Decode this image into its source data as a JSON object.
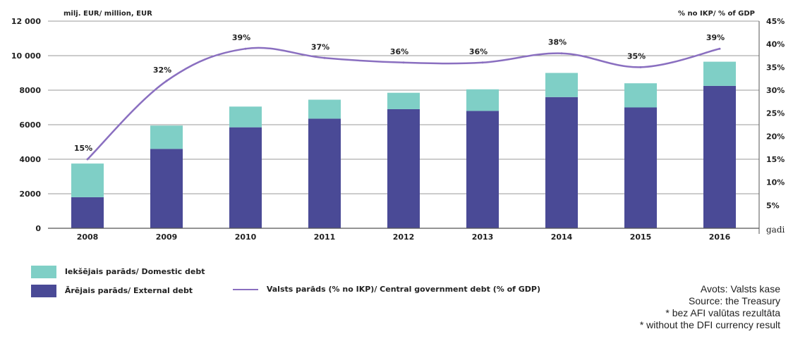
{
  "chart_data": {
    "type": "bar",
    "stacked": true,
    "categories": [
      "2008",
      "2009",
      "2010",
      "2011",
      "2012",
      "2013",
      "2014",
      "2015",
      "2016"
    ],
    "series": [
      {
        "name": "Ārējais parāds/ External debt",
        "kind": "bar",
        "axis": "left",
        "values": [
          1800,
          4600,
          5850,
          6350,
          6900,
          6800,
          7600,
          7000,
          8250
        ],
        "color": "#4a4a96"
      },
      {
        "name": "Iekšējais parāds/ Domestic debt",
        "kind": "bar",
        "axis": "left",
        "values": [
          1950,
          1350,
          1200,
          1100,
          950,
          1250,
          1400,
          1400,
          1400
        ],
        "color": "#7fcfc6"
      },
      {
        "name": "Valsts parāds (% no IKP)/ Central government debt (% of GDP)",
        "kind": "line",
        "axis": "right",
        "values": [
          15,
          32,
          39,
          37,
          36,
          36,
          38,
          35,
          39
        ],
        "color": "#8a6fc0"
      }
    ],
    "line_labels": [
      "15%",
      "32%",
      "39%",
      "37%",
      "36%",
      "36%",
      "38%",
      "35%",
      "39%"
    ],
    "left_axis": {
      "label": "milj. EUR/ million, EUR",
      "ylim": [
        0,
        12000
      ],
      "ticks": [
        0,
        2000,
        4000,
        6000,
        8000,
        10000,
        12000
      ],
      "tick_labels": [
        "0",
        "2000",
        "4000",
        "6000",
        "8000",
        "10 000",
        "12 000"
      ]
    },
    "right_axis": {
      "label": "% no IKP/ % of GDP",
      "ylim": [
        0,
        45
      ],
      "ticks": [
        5,
        10,
        15,
        20,
        25,
        30,
        35,
        40,
        45
      ],
      "tick_labels": [
        "5%",
        "10%",
        "15%",
        "20%",
        "25%",
        "30%",
        "35%",
        "40%",
        "45%"
      ]
    },
    "xlabel": "gadi",
    "grid": true
  },
  "legend": {
    "domestic": "Iekšējais parāds/ Domestic debt",
    "external": "Ārējais parāds/ External debt",
    "line": "Valsts parāds (% no IKP)/ Central government debt (% of GDP)"
  },
  "colors": {
    "external": "#4a4a96",
    "domestic": "#7fcfc6",
    "line": "#8a6fc0",
    "grid": "#9a9a9a"
  },
  "sources": [
    "Avots: Valsts kase",
    "Source: the Treasury",
    "* bez AFI valūtas rezultāta",
    "* without the DFI currency result"
  ]
}
